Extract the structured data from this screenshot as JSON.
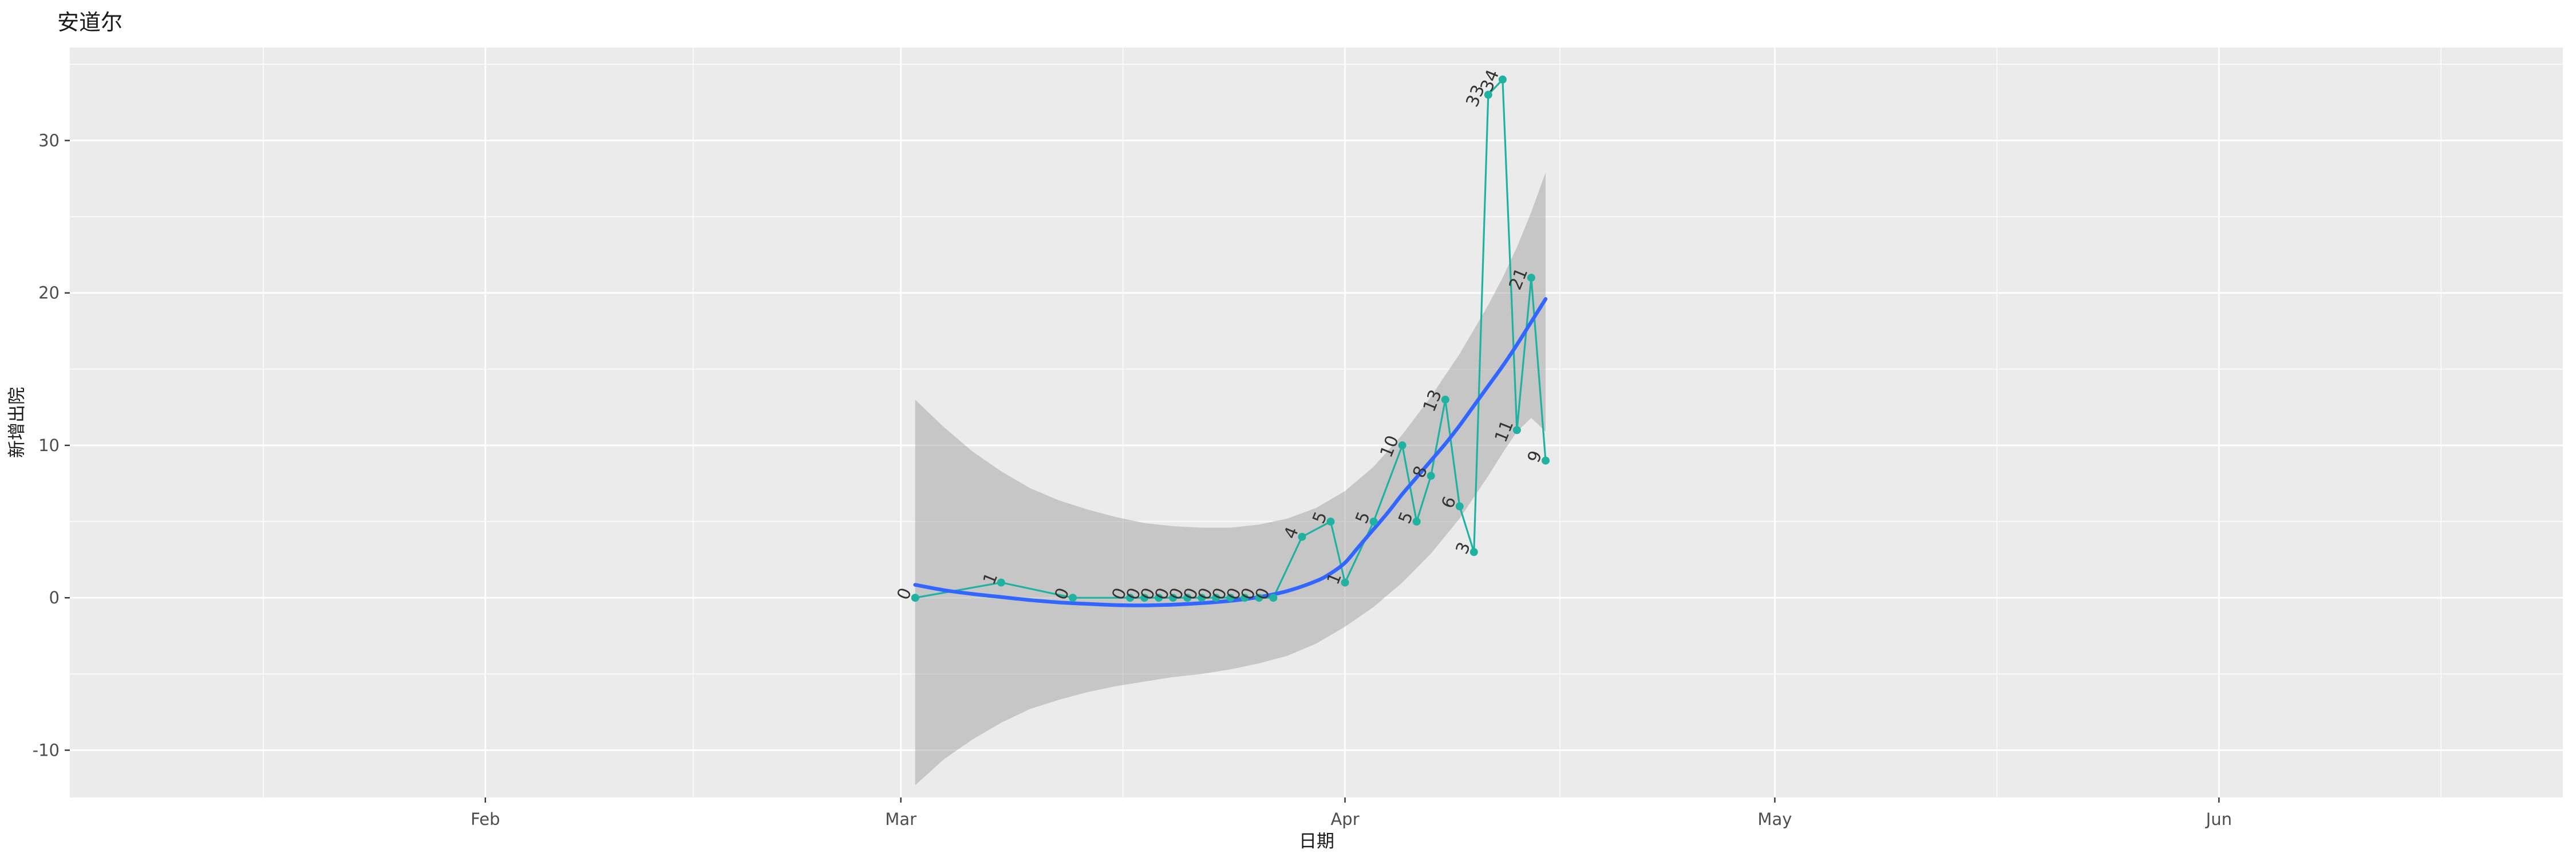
{
  "title": "安道尔",
  "chart_data": {
    "type": "line",
    "title": "安道尔",
    "xlabel": "日期",
    "ylabel": "新增出院",
    "legend": "none",
    "grid": true,
    "panel_background": "#EBEBEB",
    "gridline_color": "#FFFFFF",
    "x_axis": {
      "domain": [
        "2020-01-03",
        "2020-06-25"
      ],
      "ticks": [
        {
          "date": "2020-02-01",
          "label": "Feb"
        },
        {
          "date": "2020-03-01",
          "label": "Mar"
        },
        {
          "date": "2020-04-01",
          "label": "Apr"
        },
        {
          "date": "2020-05-01",
          "label": "May"
        },
        {
          "date": "2020-06-01",
          "label": "Jun"
        }
      ],
      "minor": [
        "2020-01-16T12",
        "2020-02-15T12",
        "2020-03-16T12",
        "2020-04-16T00",
        "2020-05-16T12",
        "2020-06-16T12"
      ]
    },
    "y_axis": {
      "domain": [
        -13.1,
        36.1
      ],
      "ticks": [
        -10,
        0,
        10,
        20,
        30
      ],
      "minor": [
        -5,
        5,
        15,
        25,
        35
      ]
    },
    "series": [
      {
        "name": "daily-new-discharged",
        "type": "line+points+labels",
        "color": "#20B2A0",
        "label_color": "#333333",
        "points": [
          {
            "date": "2020-03-02",
            "value": 0
          },
          {
            "date": "2020-03-08",
            "value": 1
          },
          {
            "date": "2020-03-13",
            "value": 0
          },
          {
            "date": "2020-03-17",
            "value": 0
          },
          {
            "date": "2020-03-18",
            "value": 0
          },
          {
            "date": "2020-03-19",
            "value": 0
          },
          {
            "date": "2020-03-20",
            "value": 0
          },
          {
            "date": "2020-03-21",
            "value": 0
          },
          {
            "date": "2020-03-22",
            "value": 0
          },
          {
            "date": "2020-03-23",
            "value": 0
          },
          {
            "date": "2020-03-24",
            "value": 0
          },
          {
            "date": "2020-03-25",
            "value": 0
          },
          {
            "date": "2020-03-26",
            "value": 0
          },
          {
            "date": "2020-03-27",
            "value": 0
          },
          {
            "date": "2020-03-29",
            "value": 4
          },
          {
            "date": "2020-03-31",
            "value": 5
          },
          {
            "date": "2020-04-01",
            "value": 1
          },
          {
            "date": "2020-04-03",
            "value": 5
          },
          {
            "date": "2020-04-05",
            "value": 10
          },
          {
            "date": "2020-04-06",
            "value": 5
          },
          {
            "date": "2020-04-07",
            "value": 8
          },
          {
            "date": "2020-04-08",
            "value": 13
          },
          {
            "date": "2020-04-09",
            "value": 6
          },
          {
            "date": "2020-04-10",
            "value": 3
          },
          {
            "date": "2020-04-11",
            "value": 33
          },
          {
            "date": "2020-04-12",
            "value": 34
          },
          {
            "date": "2020-04-13",
            "value": 11
          },
          {
            "date": "2020-04-14",
            "value": 21
          },
          {
            "date": "2020-04-15",
            "value": 9
          }
        ]
      },
      {
        "name": "smooth-fit",
        "type": "line",
        "color": "#3366FF",
        "points": [
          {
            "date": "2020-03-02",
            "value": 0.85
          },
          {
            "date": "2020-03-04",
            "value": 0.5
          },
          {
            "date": "2020-03-06",
            "value": 0.25
          },
          {
            "date": "2020-03-08",
            "value": 0.05
          },
          {
            "date": "2020-03-10",
            "value": -0.15
          },
          {
            "date": "2020-03-12",
            "value": -0.3
          },
          {
            "date": "2020-03-14",
            "value": -0.4
          },
          {
            "date": "2020-03-16",
            "value": -0.48
          },
          {
            "date": "2020-03-18",
            "value": -0.5
          },
          {
            "date": "2020-03-20",
            "value": -0.45
          },
          {
            "date": "2020-03-22",
            "value": -0.35
          },
          {
            "date": "2020-03-24",
            "value": -0.2
          },
          {
            "date": "2020-03-26",
            "value": 0.05
          },
          {
            "date": "2020-03-28",
            "value": 0.45
          },
          {
            "date": "2020-03-30",
            "value": 1.1
          },
          {
            "date": "2020-03-31",
            "value": 1.6
          },
          {
            "date": "2020-04-01",
            "value": 2.3
          },
          {
            "date": "2020-04-02",
            "value": 3.4
          },
          {
            "date": "2020-04-03",
            "value": 4.5
          },
          {
            "date": "2020-04-04",
            "value": 5.6
          },
          {
            "date": "2020-04-05",
            "value": 6.8
          },
          {
            "date": "2020-04-06",
            "value": 7.9
          },
          {
            "date": "2020-04-07",
            "value": 9.0
          },
          {
            "date": "2020-04-08",
            "value": 10.1
          },
          {
            "date": "2020-04-09",
            "value": 11.3
          },
          {
            "date": "2020-04-10",
            "value": 12.6
          },
          {
            "date": "2020-04-11",
            "value": 13.9
          },
          {
            "date": "2020-04-12",
            "value": 15.2
          },
          {
            "date": "2020-04-13",
            "value": 16.6
          },
          {
            "date": "2020-04-14",
            "value": 18.1
          },
          {
            "date": "2020-04-15",
            "value": 19.6
          }
        ]
      },
      {
        "name": "confidence-band",
        "type": "ribbon",
        "color": "#999999",
        "opacity": 0.45,
        "points": [
          {
            "date": "2020-03-02",
            "lo": -12.3,
            "hi": 13.0
          },
          {
            "date": "2020-03-04",
            "lo": -10.6,
            "hi": 11.2
          },
          {
            "date": "2020-03-06",
            "lo": -9.3,
            "hi": 9.6
          },
          {
            "date": "2020-03-08",
            "lo": -8.2,
            "hi": 8.3
          },
          {
            "date": "2020-03-10",
            "lo": -7.3,
            "hi": 7.2
          },
          {
            "date": "2020-03-12",
            "lo": -6.7,
            "hi": 6.4
          },
          {
            "date": "2020-03-14",
            "lo": -6.2,
            "hi": 5.8
          },
          {
            "date": "2020-03-16",
            "lo": -5.8,
            "hi": 5.3
          },
          {
            "date": "2020-03-18",
            "lo": -5.5,
            "hi": 4.9
          },
          {
            "date": "2020-03-20",
            "lo": -5.2,
            "hi": 4.7
          },
          {
            "date": "2020-03-22",
            "lo": -5.0,
            "hi": 4.6
          },
          {
            "date": "2020-03-24",
            "lo": -4.7,
            "hi": 4.6
          },
          {
            "date": "2020-03-26",
            "lo": -4.3,
            "hi": 4.8
          },
          {
            "date": "2020-03-28",
            "lo": -3.8,
            "hi": 5.2
          },
          {
            "date": "2020-03-30",
            "lo": -3.0,
            "hi": 5.9
          },
          {
            "date": "2020-04-01",
            "lo": -1.9,
            "hi": 7.0
          },
          {
            "date": "2020-04-03",
            "lo": -0.6,
            "hi": 8.6
          },
          {
            "date": "2020-04-05",
            "lo": 1.0,
            "hi": 10.7
          },
          {
            "date": "2020-04-07",
            "lo": 2.9,
            "hi": 13.2
          },
          {
            "date": "2020-04-09",
            "lo": 5.2,
            "hi": 16.0
          },
          {
            "date": "2020-04-11",
            "lo": 8.0,
            "hi": 19.2
          },
          {
            "date": "2020-04-12",
            "lo": 9.5,
            "hi": 21.0
          },
          {
            "date": "2020-04-13",
            "lo": 10.9,
            "hi": 23.0
          },
          {
            "date": "2020-04-14",
            "lo": 11.8,
            "hi": 25.3
          },
          {
            "date": "2020-04-15",
            "lo": 10.9,
            "hi": 27.9
          }
        ]
      }
    ]
  }
}
